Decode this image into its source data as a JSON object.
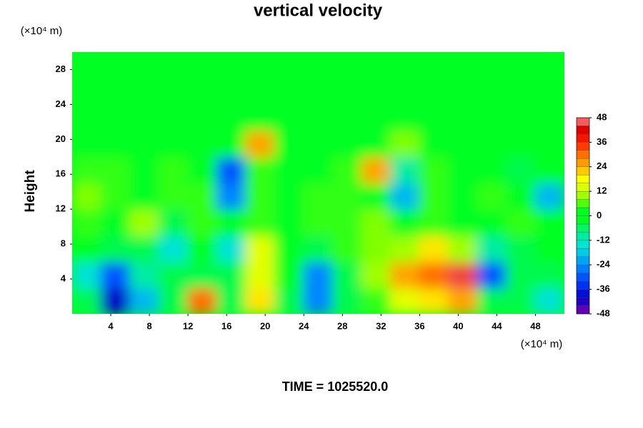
{
  "chart_data": {
    "type": "heatmap",
    "title": "vertical velocity",
    "y_label": "Height",
    "x_unit": "(×10⁴ m)",
    "y_unit": "(×10⁴ m)",
    "footer": "TIME = 1025520.0",
    "xlim": [
      0,
      51
    ],
    "ylim": [
      0,
      30
    ],
    "xticks": [
      4,
      8,
      12,
      16,
      20,
      24,
      28,
      32,
      36,
      40,
      44,
      48
    ],
    "yticks": [
      4,
      8,
      12,
      16,
      20,
      24,
      28
    ],
    "x": [
      1.5,
      4.5,
      7.5,
      10.5,
      13.5,
      16.5,
      19.5,
      22.5,
      25.5,
      28.5,
      31.5,
      34.5,
      37.5,
      40.5,
      43.5,
      46.5,
      49.5
    ],
    "y": [
      1.5,
      4.5,
      7.5,
      10.5,
      13.5,
      16.5,
      19.5,
      22.5,
      25.5,
      28.5
    ],
    "z": [
      [
        -5,
        -40,
        -20,
        -5,
        30,
        -5,
        20,
        -5,
        -25,
        -5,
        5,
        15,
        20,
        25,
        -5,
        -5,
        -15
      ],
      [
        -15,
        -30,
        -10,
        -5,
        -5,
        -5,
        15,
        0,
        -25,
        -5,
        10,
        25,
        30,
        45,
        -30,
        -5,
        -5
      ],
      [
        0,
        -5,
        -5,
        -15,
        0,
        -15,
        15,
        0,
        -5,
        5,
        8,
        10,
        20,
        10,
        -10,
        -5,
        0
      ],
      [
        5,
        3,
        10,
        -5,
        5,
        0,
        5,
        3,
        5,
        5,
        8,
        3,
        5,
        3,
        3,
        5,
        3
      ],
      [
        8,
        5,
        3,
        5,
        5,
        -25,
        5,
        3,
        5,
        5,
        3,
        -20,
        5,
        3,
        5,
        3,
        -20
      ],
      [
        5,
        5,
        3,
        5,
        3,
        -30,
        5,
        3,
        3,
        5,
        25,
        -10,
        5,
        3,
        3,
        -5,
        3
      ],
      [
        3,
        3,
        3,
        3,
        3,
        3,
        25,
        3,
        3,
        3,
        3,
        8,
        3,
        3,
        3,
        3,
        3
      ],
      [
        0,
        0,
        0,
        0,
        0,
        0,
        0,
        0,
        0,
        0,
        0,
        0,
        0,
        0,
        0,
        0,
        0
      ],
      [
        0,
        0,
        0,
        0,
        0,
        0,
        0,
        0,
        0,
        0,
        0,
        0,
        0,
        0,
        0,
        0,
        0
      ],
      [
        0,
        0,
        0,
        0,
        0,
        0,
        0,
        0,
        0,
        0,
        0,
        0,
        0,
        0,
        0,
        0,
        0
      ]
    ],
    "zlim": [
      -48,
      48
    ],
    "zticks": [
      -48,
      -36,
      -24,
      -12,
      0,
      12,
      24,
      36,
      48
    ],
    "colorscale": [
      [
        -48,
        "#8000b0"
      ],
      [
        -40,
        "#0000c8"
      ],
      [
        -32,
        "#0040ff"
      ],
      [
        -24,
        "#0090ff"
      ],
      [
        -16,
        "#00e0e0"
      ],
      [
        -8,
        "#00f090"
      ],
      [
        -3,
        "#00ff20"
      ],
      [
        3,
        "#00ff20"
      ],
      [
        8,
        "#80ff00"
      ],
      [
        13,
        "#d0ff00"
      ],
      [
        18,
        "#ffff00"
      ],
      [
        24,
        "#ffb000"
      ],
      [
        30,
        "#ff7000"
      ],
      [
        36,
        "#ff2000"
      ],
      [
        42,
        "#e00000"
      ],
      [
        48,
        "#ff8888"
      ]
    ]
  }
}
